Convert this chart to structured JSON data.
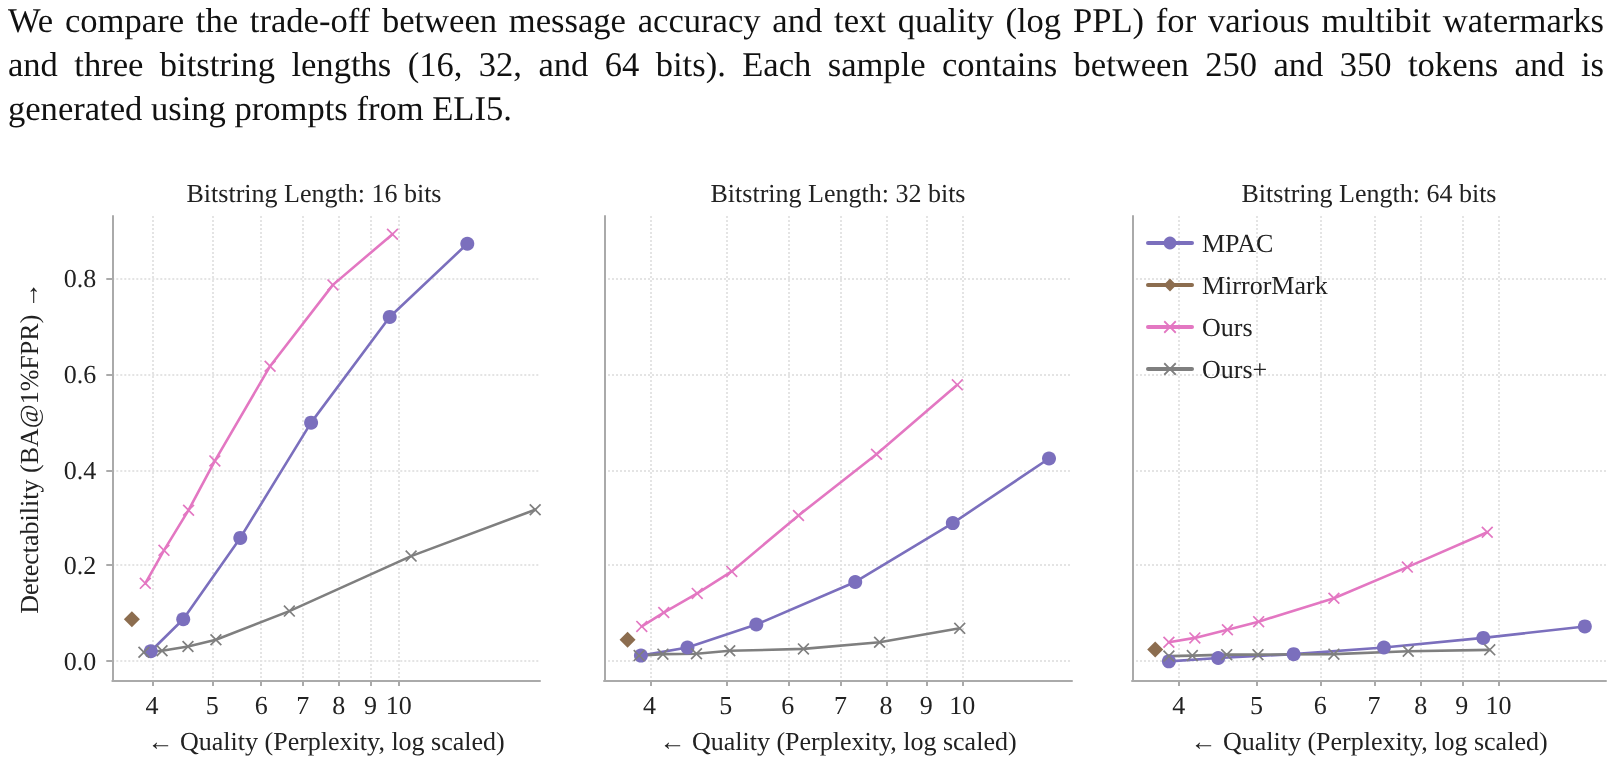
{
  "chart_data": [
    {
      "type": "line",
      "title": "Bitstring Length: 16 bits",
      "xlabel": "← Quality (Perplexity, log scaled)",
      "ylabel": "Detectability (BA@1%FPR) →",
      "annotations": [
        "We compare the trade-off between message accuracy and text quality (log PPL) for various multibit watermarks and three bitstring lengths (16, 32, and 64 bits). Each sample contains between 250 and 350 tokens and is generated using prompts from ELI5."
      ],
      "log": "x",
      "grid": true,
      "legend": false,
      "xlim": [
        3.45,
        16.9
      ],
      "xticks": [
        4,
        5,
        6,
        7,
        8,
        9,
        10
      ],
      "ylim": [
        -0.04,
        0.93
      ],
      "yticks": [
        {
          "value": 0,
          "label": "0.0"
        },
        {
          "value": 0.2,
          "label": "0.2"
        },
        {
          "value": 0.4,
          "label": "0.4"
        },
        {
          "value": 0.6,
          "label": "0.6"
        },
        {
          "value": 0.8,
          "label": "0.8"
        }
      ],
      "series": [
        {
          "color": "#7b6fbd",
          "marker": "circle",
          "x": [
            3.98,
            4.49,
            5.55,
            7.22,
            9.67,
            12.9
          ],
          "values": [
            0.02,
            0.087,
            0.257,
            0.498,
            0.719,
            0.872
          ]
        },
        {
          "color": "#8c6d4f",
          "marker": "diamond",
          "x": [
            3.71
          ],
          "values": [
            0.087
          ]
        },
        {
          "color": "#e377c2",
          "marker": "cross",
          "x": [
            3.9,
            4.18,
            4.58,
            5.05,
            6.2,
            7.83,
            9.77
          ],
          "values": [
            0.162,
            0.231,
            0.315,
            0.418,
            0.616,
            0.786,
            0.892
          ]
        },
        {
          "color": "#7f7f7f",
          "marker": "cross",
          "x": [
            3.88,
            4.15,
            4.57,
            5.07,
            6.66,
            10.47,
            16.6
          ],
          "values": [
            0.018,
            0.021,
            0.03,
            0.044,
            0.104,
            0.219,
            0.316
          ]
        }
      ]
    },
    {
      "type": "line",
      "title": "Bitstring Length: 32 bits",
      "xlabel": "← Quality (Perplexity, log scaled)",
      "log": "x",
      "grid": true,
      "legend": false,
      "tick_labels": "x",
      "xlim": [
        3.5,
        13.8
      ],
      "xticks": [
        4,
        5,
        6,
        7,
        8,
        9,
        10
      ],
      "ylim": [
        -0.04,
        0.93
      ],
      "yticks": [
        0,
        0.2,
        0.4,
        0.6,
        0.8
      ],
      "series": [
        {
          "color": "#7b6fbd",
          "marker": "circle",
          "x": [
            3.9,
            4.47,
            5.47,
            7.31,
            9.73,
            12.9
          ],
          "values": [
            0.011,
            0.028,
            0.076,
            0.165,
            0.288,
            0.423
          ]
        },
        {
          "color": "#8c6d4f",
          "marker": "diamond",
          "x": [
            3.75
          ],
          "values": [
            0.044
          ]
        },
        {
          "color": "#e377c2",
          "marker": "cross",
          "x": [
            3.91,
            4.17,
            4.6,
            5.09,
            6.19,
            7.78,
            9.86
          ],
          "values": [
            0.072,
            0.101,
            0.141,
            0.187,
            0.304,
            0.432,
            0.577
          ]
        },
        {
          "color": "#7f7f7f",
          "marker": "cross",
          "x": [
            3.88,
            4.16,
            4.59,
            5.06,
            6.28,
            7.85,
            9.93
          ],
          "values": [
            0.011,
            0.014,
            0.015,
            0.021,
            0.025,
            0.039,
            0.068
          ]
        }
      ]
    },
    {
      "type": "line",
      "title": "Bitstring Length: 64 bits",
      "xlabel": "← Quality (Perplexity, log scaled)",
      "log": "x",
      "grid": true,
      "legend": "top left",
      "tick_labels": "x",
      "xlim": [
        3.5,
        13.6
      ],
      "xticks": [
        4,
        5,
        6,
        7,
        8,
        9,
        10
      ],
      "ylim": [
        -0.04,
        0.93
      ],
      "yticks": [
        0,
        0.2,
        0.4,
        0.6,
        0.8
      ],
      "series": [
        {
          "name": "MPAC",
          "color": "#7b6fbd",
          "marker": "circle",
          "x": [
            3.89,
            4.48,
            5.56,
            7.2,
            9.57,
            12.8
          ],
          "values": [
            -0.001,
            0.006,
            0.014,
            0.028,
            0.048,
            0.072
          ]
        },
        {
          "name": "MirrorMark",
          "color": "#8c6d4f",
          "marker": "diamond",
          "x": [
            3.74
          ],
          "values": [
            0.024
          ]
        },
        {
          "name": "Ours",
          "color": "#e377c2",
          "marker": "cross",
          "x": [
            3.89,
            4.19,
            4.6,
            5.03,
            6.24,
            7.7,
            9.68
          ],
          "values": [
            0.039,
            0.048,
            0.065,
            0.082,
            0.131,
            0.196,
            0.269
          ]
        },
        {
          "name": "Ours+",
          "color": "#7f7f7f",
          "marker": "cross",
          "x": [
            3.89,
            4.16,
            4.59,
            5.02,
            6.24,
            7.72,
            9.75
          ],
          "values": [
            0.01,
            0.011,
            0.013,
            0.013,
            0.014,
            0.02,
            0.023
          ]
        }
      ]
    }
  ]
}
